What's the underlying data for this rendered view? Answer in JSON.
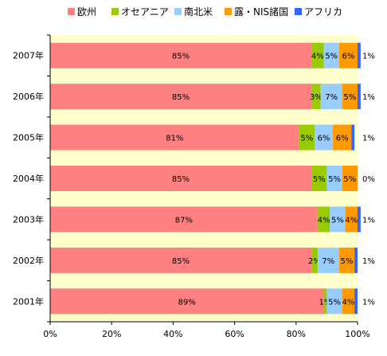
{
  "chart_data": {
    "type": "bar",
    "orientation": "horizontal",
    "stacked": true,
    "percent_stacked": true,
    "categories": [
      "2007年",
      "2006年",
      "2005年",
      "2004年",
      "2003年",
      "2002年",
      "2001年"
    ],
    "series": [
      {
        "name": "欧州",
        "color": "#ff8080",
        "values": [
          85,
          85,
          81,
          85,
          87,
          85,
          89
        ],
        "labels": [
          "85%",
          "85%",
          "81%",
          "85%",
          "87%",
          "85%",
          "89%"
        ]
      },
      {
        "name": "オセアニア",
        "color": "#99cc00",
        "values": [
          4,
          3,
          5,
          5,
          4,
          2,
          1
        ],
        "labels": [
          "4%",
          "3%",
          "5%",
          "5%",
          "4%",
          "2%",
          "1%"
        ]
      },
      {
        "name": "南北米",
        "color": "#99ccff",
        "values": [
          5,
          7,
          6,
          5,
          5,
          7,
          5
        ],
        "labels": [
          "5%",
          "7%",
          "6%",
          "5%",
          "5%",
          "7%",
          "5%"
        ]
      },
      {
        "name": "露・NIS諸国",
        "color": "#ff9900",
        "values": [
          6,
          5,
          6,
          5,
          4,
          5,
          4
        ],
        "labels": [
          "6%",
          "5%",
          "6%",
          "5%",
          "4%",
          "5%",
          "4%"
        ]
      },
      {
        "name": "アフリカ",
        "color": "#3366ff",
        "values": [
          1,
          1,
          1,
          0,
          1,
          1,
          1
        ],
        "labels": [
          "1%",
          "1%",
          "1%",
          "0%",
          "1%",
          "1%",
          "1%"
        ]
      }
    ],
    "x_ticks": [
      "0%",
      "20%",
      "40%",
      "60%",
      "80%",
      "100%"
    ],
    "xlim": [
      0,
      100
    ],
    "plot_background": "#ffffcc",
    "legend_position": "top",
    "grid": false,
    "title": "",
    "xlabel": "",
    "ylabel": ""
  }
}
